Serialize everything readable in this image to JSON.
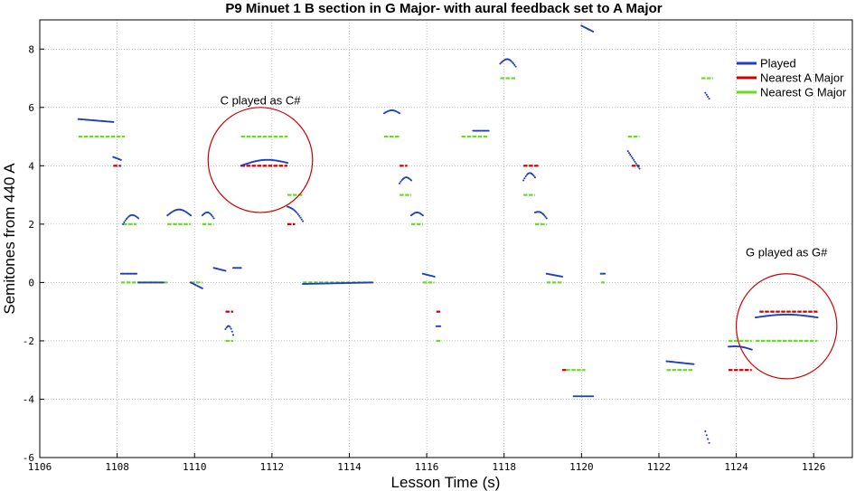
{
  "chart_data": {
    "type": "scatter",
    "title": "P9 Minuet 1 B section in G Major- with aural feedback set to A Major",
    "xlabel": "Lesson Time (s)",
    "ylabel": "Semitones from 440 A",
    "xlim": [
      1106,
      1127
    ],
    "ylim": [
      -6,
      9
    ],
    "xticks": [
      1106,
      1108,
      1110,
      1112,
      1114,
      1116,
      1118,
      1120,
      1122,
      1124,
      1126
    ],
    "yticks": [
      -6,
      -4,
      -2,
      0,
      2,
      4,
      6,
      8
    ],
    "grid": true,
    "legend": {
      "position": "top-right",
      "entries": [
        {
          "name": "Played",
          "color": "#1f3fbf"
        },
        {
          "name": "Nearest A Major",
          "color": "#cc0000"
        },
        {
          "name": "Nearest G Major",
          "color": "#66dd22"
        }
      ]
    },
    "annotations": [
      {
        "text": "C played as C#",
        "x": 1111.7,
        "y": 6.1,
        "circle": {
          "cx": 1111.7,
          "cy": 4.2,
          "rx": 1.35,
          "ry": 1.8
        }
      },
      {
        "text": "G played as G#",
        "x": 1125.3,
        "y": 0.9,
        "circle": {
          "cx": 1125.3,
          "cy": -1.5,
          "rx": 1.3,
          "ry": 1.8
        }
      }
    ],
    "played_segments": [
      {
        "x0": 1107.0,
        "x1": 1107.9,
        "y0": 5.6,
        "y1": 5.5,
        "arc": 0
      },
      {
        "x0": 1107.9,
        "x1": 1108.1,
        "y0": 4.3,
        "y1": 4.2,
        "arc": 0
      },
      {
        "x0": 1108.15,
        "x1": 1108.55,
        "y0": 2.0,
        "y1": 2.2,
        "arc": 0.2
      },
      {
        "x0": 1108.1,
        "x1": 1108.5,
        "y0": 0.3,
        "y1": 0.3,
        "arc": 0
      },
      {
        "x0": 1108.55,
        "x1": 1109.2,
        "y0": 0.0,
        "y1": 0.0,
        "arc": 0
      },
      {
        "x0": 1109.3,
        "x1": 1109.9,
        "y0": 2.3,
        "y1": 2.3,
        "arc": 0.2
      },
      {
        "x0": 1109.9,
        "x1": 1110.2,
        "y0": 0.0,
        "y1": -0.2,
        "arc": 0
      },
      {
        "x0": 1110.2,
        "x1": 1110.5,
        "y0": 2.3,
        "y1": 2.2,
        "arc": 0.15
      },
      {
        "x0": 1110.5,
        "x1": 1110.8,
        "y0": 0.5,
        "y1": 0.4,
        "arc": 0
      },
      {
        "x0": 1110.8,
        "x1": 1111.0,
        "y0": -1.6,
        "y1": -1.8,
        "arc": 0.2
      },
      {
        "x0": 1111.0,
        "x1": 1111.2,
        "y0": 0.5,
        "y1": 0.5,
        "arc": 0
      },
      {
        "x0": 1111.2,
        "x1": 1112.4,
        "y0": 4.0,
        "y1": 4.1,
        "arc": 0.15
      },
      {
        "x0": 1112.4,
        "x1": 1112.8,
        "y0": 2.6,
        "y1": 2.1,
        "arc": 0.1
      },
      {
        "x0": 1112.8,
        "x1": 1114.6,
        "y0": -0.05,
        "y1": 0.0,
        "arc": 0
      },
      {
        "x0": 1114.9,
        "x1": 1115.3,
        "y0": 5.8,
        "y1": 5.8,
        "arc": 0.1
      },
      {
        "x0": 1115.3,
        "x1": 1115.6,
        "y0": 3.4,
        "y1": 3.5,
        "arc": 0.15
      },
      {
        "x0": 1115.6,
        "x1": 1115.9,
        "y0": 2.3,
        "y1": 2.3,
        "arc": 0.1
      },
      {
        "x0": 1115.9,
        "x1": 1116.2,
        "y0": 0.3,
        "y1": 0.2,
        "arc": 0
      },
      {
        "x0": 1116.25,
        "x1": 1116.35,
        "y0": -1.5,
        "y1": -1.5,
        "arc": 0
      },
      {
        "x0": 1117.2,
        "x1": 1117.6,
        "y0": 5.2,
        "y1": 5.2,
        "arc": 0
      },
      {
        "x0": 1117.9,
        "x1": 1118.3,
        "y0": 7.5,
        "y1": 7.4,
        "arc": 0.2
      },
      {
        "x0": 1118.5,
        "x1": 1118.8,
        "y0": 3.5,
        "y1": 3.6,
        "arc": 0.2
      },
      {
        "x0": 1118.8,
        "x1": 1119.1,
        "y0": 2.4,
        "y1": 2.2,
        "arc": 0.1
      },
      {
        "x0": 1119.1,
        "x1": 1119.5,
        "y0": 0.3,
        "y1": 0.2,
        "arc": 0
      },
      {
        "x0": 1119.8,
        "x1": 1120.3,
        "y0": -3.9,
        "y1": -3.9,
        "arc": 0
      },
      {
        "x0": 1120.0,
        "x1": 1120.3,
        "y0": 8.8,
        "y1": 8.6,
        "arc": 0
      },
      {
        "x0": 1120.5,
        "x1": 1120.6,
        "y0": 0.3,
        "y1": 0.3,
        "arc": 0
      },
      {
        "x0": 1121.2,
        "x1": 1121.5,
        "y0": 4.5,
        "y1": 3.9,
        "arc": 0
      },
      {
        "x0": 1122.2,
        "x1": 1122.9,
        "y0": -2.7,
        "y1": -2.8,
        "arc": 0
      },
      {
        "x0": 1123.2,
        "x1": 1123.3,
        "y0": 6.5,
        "y1": 6.3,
        "arc": 0
      },
      {
        "x0": 1123.2,
        "x1": 1123.3,
        "y0": -5.1,
        "y1": -5.5,
        "arc": 0
      },
      {
        "x0": 1123.8,
        "x1": 1124.4,
        "y0": -2.2,
        "y1": -2.3,
        "arc": 0.05
      },
      {
        "x0": 1124.5,
        "x1": 1126.1,
        "y0": -1.2,
        "y1": -1.2,
        "arc": 0.1
      }
    ],
    "nearest_a_major": [
      {
        "x0": 1107.9,
        "x1": 1108.1,
        "y": 4
      },
      {
        "x0": 1110.8,
        "x1": 1111.0,
        "y": -1
      },
      {
        "x0": 1111.2,
        "x1": 1112.4,
        "y": 4
      },
      {
        "x0": 1112.4,
        "x1": 1112.6,
        "y": 2
      },
      {
        "x0": 1115.3,
        "x1": 1115.5,
        "y": 4
      },
      {
        "x0": 1116.25,
        "x1": 1116.35,
        "y": -1
      },
      {
        "x0": 1118.5,
        "x1": 1118.9,
        "y": 4
      },
      {
        "x0": 1119.5,
        "x1": 1119.6,
        "y": -3
      },
      {
        "x0": 1121.3,
        "x1": 1121.5,
        "y": 4
      },
      {
        "x0": 1123.8,
        "x1": 1124.4,
        "y": -3
      },
      {
        "x0": 1124.6,
        "x1": 1126.1,
        "y": -1
      }
    ],
    "nearest_g_major": [
      {
        "x0": 1107.0,
        "x1": 1108.2,
        "y": 5
      },
      {
        "x0": 1108.15,
        "x1": 1108.5,
        "y": 2
      },
      {
        "x0": 1108.1,
        "x1": 1109.3,
        "y": 0
      },
      {
        "x0": 1109.3,
        "x1": 1109.9,
        "y": 2
      },
      {
        "x0": 1109.9,
        "x1": 1110.2,
        "y": 0
      },
      {
        "x0": 1110.2,
        "x1": 1110.5,
        "y": 2
      },
      {
        "x0": 1110.8,
        "x1": 1111.0,
        "y": -2
      },
      {
        "x0": 1111.2,
        "x1": 1112.4,
        "y": 5
      },
      {
        "x0": 1112.4,
        "x1": 1112.8,
        "y": 3
      },
      {
        "x0": 1112.8,
        "x1": 1114.6,
        "y": 0
      },
      {
        "x0": 1114.9,
        "x1": 1115.3,
        "y": 5
      },
      {
        "x0": 1115.3,
        "x1": 1115.6,
        "y": 3
      },
      {
        "x0": 1115.6,
        "x1": 1115.9,
        "y": 2
      },
      {
        "x0": 1115.9,
        "x1": 1116.2,
        "y": 0
      },
      {
        "x0": 1116.25,
        "x1": 1116.35,
        "y": -2
      },
      {
        "x0": 1116.9,
        "x1": 1117.6,
        "y": 5
      },
      {
        "x0": 1117.9,
        "x1": 1118.3,
        "y": 7
      },
      {
        "x0": 1118.5,
        "x1": 1118.8,
        "y": 3
      },
      {
        "x0": 1118.8,
        "x1": 1119.1,
        "y": 2
      },
      {
        "x0": 1119.1,
        "x1": 1119.5,
        "y": 0
      },
      {
        "x0": 1119.6,
        "x1": 1120.1,
        "y": -3
      },
      {
        "x0": 1120.5,
        "x1": 1120.6,
        "y": 0
      },
      {
        "x0": 1121.2,
        "x1": 1121.5,
        "y": 5
      },
      {
        "x0": 1122.2,
        "x1": 1122.9,
        "y": -3
      },
      {
        "x0": 1123.1,
        "x1": 1123.4,
        "y": 7
      },
      {
        "x0": 1123.8,
        "x1": 1124.4,
        "y": -2
      },
      {
        "x0": 1124.5,
        "x1": 1126.1,
        "y": -2
      }
    ]
  }
}
